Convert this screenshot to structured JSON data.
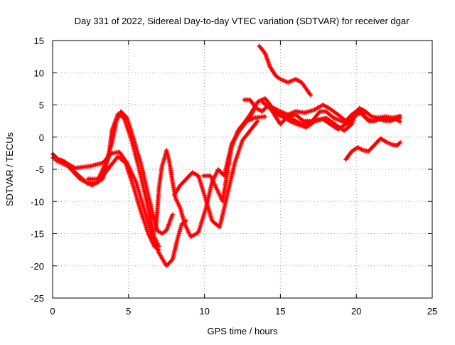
{
  "chart_data": {
    "type": "scatter",
    "title": "Day 331 of 2022, Sidereal Day-to-day VTEC variation (SDTVAR) for receiver dgar",
    "xlabel": "GPS time / hours",
    "ylabel": "SDTVAR / TECUs",
    "xlim": [
      0,
      25
    ],
    "ylim": [
      -25,
      15
    ],
    "xticks": [
      "0",
      "5",
      "10",
      "15",
      "20",
      "25"
    ],
    "yticks": [
      "15",
      "10",
      "5",
      "0",
      "-5",
      "-10",
      "-15",
      "-20",
      "-25"
    ],
    "grid": true,
    "marker": "plus",
    "color": "#ff0000",
    "series": [
      {
        "points": [
          [
            0.0,
            -3.2
          ],
          [
            0.8,
            -3.8
          ],
          [
            1.5,
            -5.5
          ],
          [
            2.3,
            -7.2
          ],
          [
            3.0,
            -7.0
          ],
          [
            3.8,
            -4.5
          ],
          [
            4.3,
            -3.0
          ],
          [
            4.8,
            -4.0
          ],
          [
            5.3,
            -7.5
          ],
          [
            5.8,
            -11.5
          ],
          [
            6.3,
            -15.0
          ],
          [
            6.7,
            -17.0
          ],
          [
            7.0,
            -17.5
          ]
        ]
      },
      {
        "points": [
          [
            0.2,
            -3.6
          ],
          [
            1.0,
            -4.5
          ],
          [
            1.8,
            -6.5
          ],
          [
            2.6,
            -7.5
          ],
          [
            3.3,
            -6.5
          ],
          [
            3.7,
            -3.0
          ],
          [
            3.9,
            1.0
          ],
          [
            4.3,
            3.6
          ],
          [
            4.7,
            3.0
          ],
          [
            5.2,
            -0.5
          ],
          [
            5.7,
            -5.0
          ],
          [
            6.2,
            -10.0
          ],
          [
            6.7,
            -15.5
          ],
          [
            7.0,
            -17.0
          ]
        ]
      },
      {
        "points": [
          [
            0.5,
            -3.5
          ],
          [
            1.5,
            -4.8
          ],
          [
            2.5,
            -4.5
          ],
          [
            3.3,
            -4.0
          ],
          [
            3.9,
            -2.5
          ],
          [
            4.4,
            -2.3
          ],
          [
            4.9,
            -4.0
          ],
          [
            5.5,
            -7.0
          ],
          [
            6.0,
            -11.0
          ],
          [
            6.5,
            -15.0
          ],
          [
            7.0,
            -18.0
          ],
          [
            7.5,
            -20.0
          ],
          [
            7.9,
            -19.0
          ],
          [
            8.2,
            -16.0
          ],
          [
            8.5,
            -13.5
          ],
          [
            8.8,
            -13.0
          ]
        ]
      },
      {
        "points": [
          [
            2.3,
            -6.5
          ],
          [
            3.0,
            -6.5
          ],
          [
            3.5,
            -4.0
          ],
          [
            3.9,
            -1.0
          ],
          [
            4.2,
            2.5
          ],
          [
            4.5,
            4.0
          ],
          [
            4.9,
            3.0
          ],
          [
            5.3,
            0.0
          ],
          [
            5.8,
            -4.0
          ],
          [
            6.2,
            -8.0
          ],
          [
            6.6,
            -12.0
          ],
          [
            6.9,
            -14.5
          ],
          [
            7.2,
            -15.0
          ],
          [
            7.5,
            -14.5
          ],
          [
            7.9,
            -12.0
          ]
        ]
      },
      {
        "points": [
          [
            6.8,
            -14.5
          ],
          [
            7.0,
            -8.0
          ],
          [
            7.2,
            -4.5
          ],
          [
            7.4,
            -3.0
          ],
          [
            7.5,
            -2.0
          ],
          [
            7.7,
            -4.0
          ],
          [
            7.9,
            -7.0
          ],
          [
            8.1,
            -9.5
          ],
          [
            8.4,
            -11.0
          ],
          [
            8.7,
            -13.5
          ],
          [
            9.1,
            -15.5
          ],
          [
            9.6,
            -14.8
          ],
          [
            10.1,
            -11.0
          ],
          [
            10.5,
            -7.0
          ],
          [
            10.9,
            -5.0
          ],
          [
            11.1,
            -5.5
          ],
          [
            11.3,
            -6.0
          ],
          [
            11.5,
            -4.0
          ],
          [
            11.8,
            -1.0
          ],
          [
            12.3,
            1.0
          ],
          [
            12.8,
            2.5
          ],
          [
            13.3,
            3.0
          ],
          [
            14.0,
            3.2
          ]
        ]
      },
      {
        "points": [
          [
            8.0,
            -9.0
          ],
          [
            8.4,
            -7.5
          ],
          [
            8.8,
            -6.5
          ],
          [
            9.2,
            -5.5
          ],
          [
            9.6,
            -6.0
          ],
          [
            10.0,
            -9.0
          ],
          [
            10.5,
            -13.0
          ],
          [
            11.0,
            -14.0
          ],
          [
            11.3,
            -11.0
          ],
          [
            11.6,
            -8.0
          ],
          [
            12.0,
            -4.0
          ],
          [
            12.5,
            -0.5
          ],
          [
            13.0,
            1.0
          ],
          [
            13.5,
            2.5
          ]
        ]
      },
      {
        "points": [
          [
            9.9,
            -6.0
          ],
          [
            10.4,
            -6.0
          ],
          [
            10.8,
            -8.0
          ],
          [
            11.2,
            -10.0
          ],
          [
            11.5,
            -5.5
          ],
          [
            11.8,
            -1.5
          ],
          [
            12.2,
            1.0
          ],
          [
            12.7,
            2.5
          ],
          [
            13.0,
            3.5
          ],
          [
            13.4,
            5.0
          ]
        ]
      },
      {
        "points": [
          [
            12.6,
            5.8
          ],
          [
            13.0,
            5.8
          ],
          [
            13.4,
            4.5
          ],
          [
            13.8,
            4.0
          ],
          [
            14.2,
            5.0
          ],
          [
            14.6,
            3.5
          ],
          [
            15.0,
            2.0
          ],
          [
            15.4,
            3.0
          ],
          [
            16.0,
            3.5
          ],
          [
            16.5,
            2.5
          ],
          [
            17.2,
            2.5
          ],
          [
            18.0,
            3.0
          ],
          [
            18.6,
            2.0
          ],
          [
            19.2,
            1.0
          ],
          [
            19.7,
            2.0
          ],
          [
            20.0,
            4.0
          ],
          [
            20.3,
            4.0
          ]
        ]
      },
      {
        "points": [
          [
            13.0,
            3.0
          ],
          [
            13.5,
            5.5
          ],
          [
            14.0,
            6.0
          ],
          [
            14.5,
            4.5
          ],
          [
            15.0,
            4.0
          ],
          [
            15.5,
            3.5
          ],
          [
            16.0,
            4.0
          ],
          [
            16.6,
            3.8
          ],
          [
            17.2,
            4.2
          ],
          [
            17.8,
            5.0
          ],
          [
            18.2,
            4.5
          ],
          [
            18.8,
            3.5
          ],
          [
            19.3,
            2.5
          ],
          [
            19.7,
            3.5
          ],
          [
            20.1,
            4.2
          ],
          [
            20.6,
            3.0
          ],
          [
            21.0,
            2.5
          ],
          [
            21.4,
            2.8
          ],
          [
            22.0,
            2.5
          ],
          [
            22.5,
            2.8
          ],
          [
            22.9,
            3.0
          ]
        ]
      },
      {
        "points": [
          [
            13.8,
            5.5
          ],
          [
            14.3,
            4.5
          ],
          [
            14.8,
            3.5
          ],
          [
            15.3,
            3.0
          ],
          [
            15.8,
            2.8
          ],
          [
            16.4,
            2.0
          ],
          [
            17.0,
            2.2
          ],
          [
            17.6,
            4.0
          ],
          [
            18.0,
            4.0
          ],
          [
            18.5,
            3.0
          ],
          [
            19.0,
            2.5
          ],
          [
            19.5,
            2.0
          ],
          [
            20.0,
            3.5
          ],
          [
            20.4,
            3.8
          ],
          [
            20.8,
            2.5
          ],
          [
            21.2,
            2.5
          ],
          [
            21.7,
            3.0
          ],
          [
            22.2,
            2.5
          ],
          [
            22.6,
            2.8
          ],
          [
            22.9,
            2.4
          ]
        ]
      },
      {
        "points": [
          [
            14.6,
            4.5
          ],
          [
            15.1,
            3.5
          ],
          [
            15.6,
            2.5
          ],
          [
            16.1,
            2.0
          ],
          [
            16.7,
            1.5
          ],
          [
            17.3,
            2.5
          ],
          [
            17.8,
            2.8
          ],
          [
            18.3,
            2.0
          ],
          [
            18.8,
            1.2
          ],
          [
            19.3,
            2.0
          ],
          [
            19.8,
            3.0
          ],
          [
            20.2,
            4.5
          ],
          [
            20.6,
            4.0
          ],
          [
            21.0,
            3.2
          ],
          [
            21.4,
            3.0
          ],
          [
            21.9,
            3.2
          ],
          [
            22.4,
            3.0
          ],
          [
            22.9,
            3.3
          ]
        ]
      },
      {
        "points": [
          [
            13.6,
            14.2
          ],
          [
            14.0,
            13.0
          ],
          [
            14.3,
            11.0
          ],
          [
            14.7,
            9.5
          ],
          [
            15.0,
            9.0
          ],
          [
            15.5,
            8.5
          ],
          [
            16.0,
            9.0
          ],
          [
            16.4,
            8.5
          ],
          [
            16.7,
            7.5
          ],
          [
            17.0,
            6.5
          ]
        ]
      },
      {
        "points": [
          [
            19.3,
            -3.5
          ],
          [
            19.7,
            -2.2
          ],
          [
            20.1,
            -1.6
          ],
          [
            20.4,
            -2.0
          ],
          [
            20.8,
            -2.2
          ],
          [
            21.2,
            -1.2
          ],
          [
            21.6,
            -0.2
          ],
          [
            22.0,
            -0.8
          ],
          [
            22.4,
            -1.2
          ],
          [
            22.7,
            -1.3
          ],
          [
            22.9,
            -0.8
          ]
        ]
      },
      {
        "points": [
          [
            0.0,
            -2.6
          ],
          [
            0.3,
            -3.3
          ]
        ]
      }
    ]
  }
}
